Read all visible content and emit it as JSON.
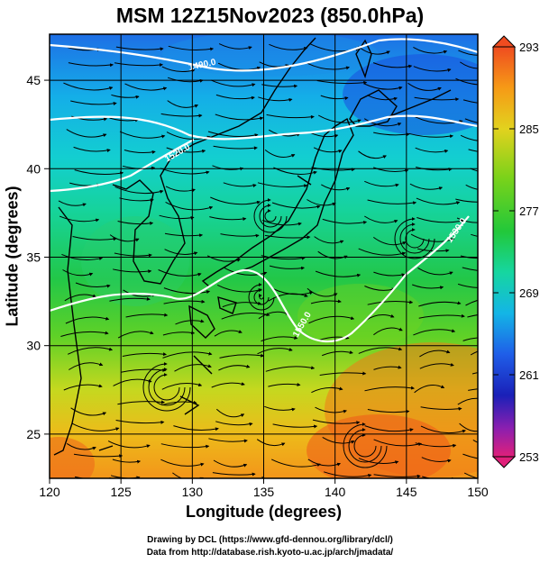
{
  "title": "MSM 12Z15Nov2023 (850.0hPa)",
  "x_axis": {
    "label": "Longitude (degrees)",
    "range": [
      120,
      150
    ],
    "ticks": [
      120,
      125,
      130,
      135,
      140,
      145,
      150
    ]
  },
  "y_axis": {
    "label": "Latitude  (degrees)",
    "range": [
      22.5,
      47.6
    ],
    "ticks": [
      25,
      30,
      35,
      40,
      45
    ]
  },
  "colorbar": {
    "range": [
      253,
      293
    ],
    "tick_labels": [
      "293",
      "285",
      "277",
      "269",
      "261",
      "253"
    ],
    "tick_values": [
      293,
      285,
      277,
      269,
      261,
      253
    ],
    "colors": [
      "#e0207a",
      "#8a1fb0",
      "#1a20b8",
      "#1f5ee8",
      "#13b5e6",
      "#16d6a0",
      "#22c83a",
      "#7ad21a",
      "#e2d21e",
      "#f69a16",
      "#ef4c20"
    ]
  },
  "contours": [
    {
      "label": "1490.0"
    },
    {
      "label": "1520.0"
    },
    {
      "label": "1530.0"
    },
    {
      "label": "1550.0"
    }
  ],
  "credits": {
    "line1": "Drawing by DCL (https://www.gfd-dennou.org/library/dcl/)",
    "line2": "Data from http://database.rish.kyoto-u.ac.jp/arch/jmadata/"
  }
}
